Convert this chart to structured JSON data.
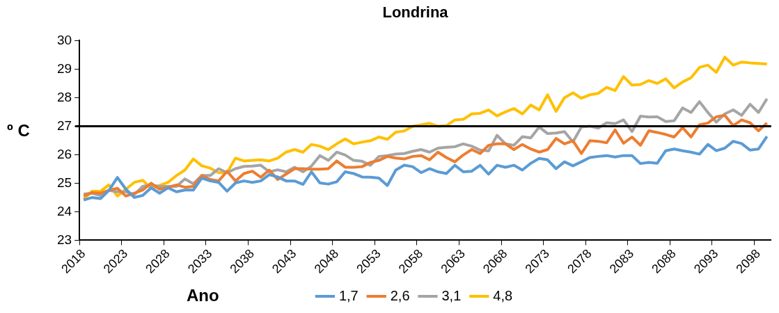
{
  "chart_data": {
    "type": "line",
    "title": "Londrina",
    "xlabel": "Ano",
    "ylabel": "º C",
    "categories": [
      "2018",
      null,
      null,
      null,
      null,
      "2023",
      null,
      null,
      null,
      null,
      "2028",
      null,
      null,
      null,
      null,
      "2033",
      null,
      null,
      null,
      null,
      "2038",
      null,
      null,
      null,
      null,
      "2043",
      null,
      null,
      null,
      null,
      "2048",
      null,
      null,
      null,
      null,
      "2053",
      null,
      null,
      null,
      null,
      "2058",
      null,
      null,
      null,
      null,
      "2063",
      null,
      null,
      null,
      null,
      "2068",
      null,
      null,
      null,
      null,
      "2073",
      null,
      null,
      null,
      null,
      "2078",
      null,
      null,
      null,
      null,
      "2083",
      null,
      null,
      null,
      null,
      "2088",
      null,
      null,
      null,
      null,
      "2093",
      null,
      null,
      null,
      null,
      "2098",
      null
    ],
    "series": [
      {
        "name": "1,7",
        "color": "#5b9bd5",
        "values": [
          24.41,
          24.5,
          24.46,
          24.75,
          25.2,
          24.79,
          24.5,
          24.57,
          24.84,
          24.65,
          24.84,
          24.7,
          24.76,
          24.76,
          25.18,
          25.08,
          25.03,
          24.72,
          25.01,
          25.08,
          25.03,
          25.08,
          25.3,
          25.22,
          25.08,
          25.08,
          24.96,
          25.4,
          25.01,
          24.97,
          25.05,
          25.4,
          25.34,
          25.22,
          25.21,
          25.18,
          24.92,
          25.46,
          25.63,
          25.58,
          25.37,
          25.51,
          25.4,
          25.34,
          25.63,
          25.4,
          25.42,
          25.63,
          25.32,
          25.63,
          25.56,
          25.63,
          25.46,
          25.7,
          25.87,
          25.82,
          25.51,
          25.75,
          25.61,
          25.75,
          25.9,
          25.94,
          25.97,
          25.92,
          25.97,
          25.97,
          25.69,
          25.73,
          25.7,
          26.14,
          26.2,
          26.14,
          26.09,
          26.02,
          26.36,
          26.14,
          26.23,
          26.47,
          26.39,
          26.16,
          26.2,
          26.64
        ]
      },
      {
        "name": "2,6",
        "color": "#ed7d31",
        "values": [
          24.55,
          24.67,
          24.65,
          24.75,
          24.82,
          24.55,
          24.65,
          24.76,
          25.0,
          24.79,
          24.86,
          24.94,
          24.86,
          24.89,
          25.27,
          25.13,
          25.08,
          25.42,
          25.08,
          25.34,
          25.42,
          25.21,
          25.46,
          25.13,
          25.32,
          25.51,
          25.51,
          25.49,
          25.49,
          25.51,
          25.78,
          25.56,
          25.56,
          25.58,
          25.73,
          25.8,
          25.94,
          25.88,
          25.85,
          25.94,
          25.97,
          25.82,
          26.09,
          25.9,
          25.75,
          25.99,
          26.18,
          26.04,
          26.33,
          26.38,
          26.38,
          26.18,
          26.36,
          26.2,
          26.09,
          26.18,
          26.57,
          26.38,
          26.49,
          26.04,
          26.49,
          26.47,
          26.42,
          26.87,
          26.4,
          26.62,
          26.33,
          26.84,
          26.78,
          26.71,
          26.62,
          26.95,
          26.62,
          27.05,
          27.11,
          27.33,
          27.38,
          27.02,
          27.22,
          27.12,
          26.84,
          27.11
        ]
      },
      {
        "name": "3,1",
        "color": "#a5a5a5",
        "values": [
          24.62,
          24.65,
          24.57,
          24.75,
          24.7,
          24.7,
          24.6,
          24.89,
          24.94,
          24.89,
          24.89,
          24.89,
          25.15,
          24.98,
          25.27,
          25.27,
          25.51,
          25.37,
          25.51,
          25.59,
          25.6,
          25.63,
          25.4,
          25.47,
          25.4,
          25.56,
          25.4,
          25.6,
          25.97,
          25.8,
          26.09,
          25.99,
          25.8,
          25.77,
          25.63,
          25.94,
          25.97,
          26.02,
          26.04,
          26.12,
          26.18,
          26.09,
          26.23,
          26.26,
          26.28,
          26.38,
          26.3,
          26.16,
          26.13,
          26.68,
          26.38,
          26.33,
          26.63,
          26.59,
          26.97,
          26.74,
          26.76,
          26.81,
          26.45,
          26.97,
          27.0,
          26.93,
          27.12,
          27.09,
          27.22,
          26.81,
          27.35,
          27.32,
          27.33,
          27.16,
          27.19,
          27.64,
          27.48,
          27.86,
          27.48,
          27.14,
          27.43,
          27.57,
          27.38,
          27.77,
          27.48,
          27.96
        ]
      },
      {
        "name": "4,8",
        "color": "#ffc000",
        "values": [
          24.44,
          24.72,
          24.72,
          24.94,
          24.55,
          24.79,
          25.03,
          25.1,
          24.82,
          24.92,
          25.03,
          25.27,
          25.46,
          25.85,
          25.61,
          25.53,
          25.37,
          25.37,
          25.88,
          25.78,
          25.8,
          25.82,
          25.78,
          25.88,
          26.09,
          26.18,
          26.09,
          26.36,
          26.3,
          26.18,
          26.38,
          26.55,
          26.38,
          26.44,
          26.49,
          26.62,
          26.54,
          26.79,
          26.83,
          27.0,
          27.05,
          27.1,
          27.0,
          27.02,
          27.22,
          27.24,
          27.43,
          27.45,
          27.57,
          27.36,
          27.5,
          27.62,
          27.43,
          27.74,
          27.57,
          28.1,
          27.52,
          28.0,
          28.17,
          27.98,
          28.1,
          28.15,
          28.36,
          28.25,
          28.74,
          28.44,
          28.46,
          28.6,
          28.5,
          28.66,
          28.34,
          28.55,
          28.7,
          29.06,
          29.14,
          28.89,
          29.42,
          29.14,
          29.25,
          29.22,
          29.2,
          29.18
        ]
      }
    ],
    "ylim": [
      23,
      30
    ],
    "yticks": [
      23,
      24,
      25,
      26,
      27,
      28,
      29,
      30
    ],
    "ref_lines": [
      {
        "axis": "y",
        "value": 27,
        "color": "#000000"
      }
    ],
    "legend": "bottom",
    "grid": false,
    "marker": "none"
  }
}
